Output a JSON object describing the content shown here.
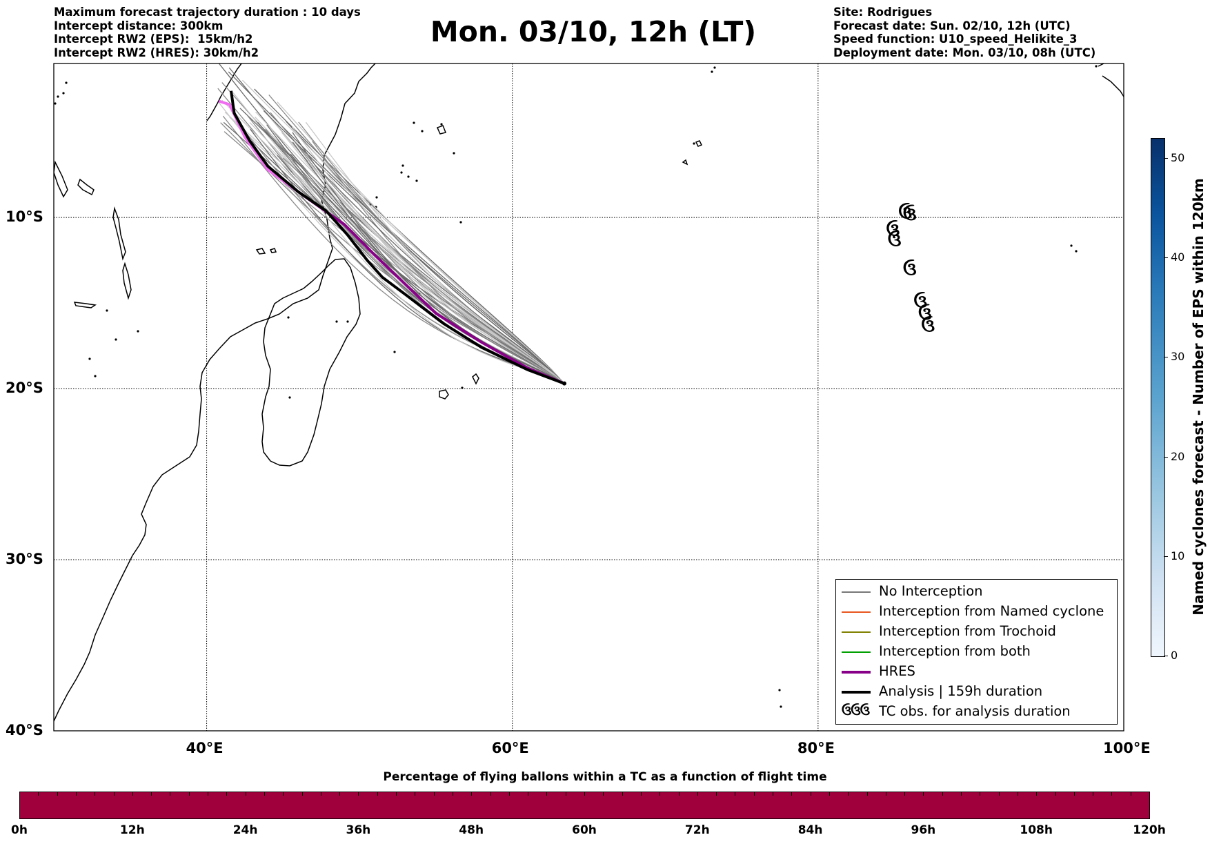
{
  "header": {
    "left_lines": [
      "Maximum forecast trajectory duration : 10 days",
      "Intercept distance: 300km",
      "Intercept RW2 (EPS):  15km/h2",
      "Intercept RW2 (HRES): 30km/h2"
    ],
    "title": "Mon. 03/10, 12h (LT)",
    "right_lines": [
      "Site: Rodrigues",
      "Forecast date: Sun. 02/10, 12h (UTC)",
      "Speed function: U10_speed_Helikite_3",
      "Deployment date: Mon. 03/10, 08h (UTC)"
    ]
  },
  "map": {
    "lon_range": [
      30,
      100
    ],
    "lat_range": [
      -40,
      -1
    ],
    "lon_ticks": [
      {
        "value": 40,
        "label": "40°E"
      },
      {
        "value": 60,
        "label": "60°E"
      },
      {
        "value": 80,
        "label": "80°E"
      },
      {
        "value": 100,
        "label": "100°E"
      }
    ],
    "lat_ticks": [
      {
        "value": -10,
        "label": "10°S"
      },
      {
        "value": -20,
        "label": "20°S"
      },
      {
        "value": -30,
        "label": "30°S"
      },
      {
        "value": -40,
        "label": "40°S"
      }
    ],
    "gridlines": true,
    "launch_site": {
      "lon": 63.4,
      "lat": -19.7
    },
    "hres_track": [
      [
        63.4,
        -19.7
      ],
      [
        61,
        -18.8
      ],
      [
        58,
        -17.3
      ],
      [
        55,
        -15.6
      ],
      [
        53,
        -13.9
      ],
      [
        51,
        -12.2
      ],
      [
        49,
        -10.4
      ],
      [
        46,
        -8.5
      ],
      [
        44,
        -7.2
      ],
      [
        42.5,
        -5.3
      ],
      [
        41.5,
        -3.4
      ],
      [
        40.8,
        -3.2
      ]
    ],
    "analysis_track": [
      [
        63.4,
        -19.7
      ],
      [
        61,
        -18.9
      ],
      [
        58,
        -17.6
      ],
      [
        55.5,
        -16.2
      ],
      [
        53,
        -14.5
      ],
      [
        51.5,
        -13.5
      ],
      [
        50.5,
        -12.5
      ],
      [
        49.2,
        -11
      ],
      [
        47.8,
        -9.6
      ],
      [
        46,
        -8.5
      ],
      [
        44,
        -7
      ],
      [
        42.8,
        -5.5
      ],
      [
        41.8,
        -3.9
      ],
      [
        41.6,
        -2.6
      ]
    ],
    "tc_observations": [
      [
        85.7,
        -9.7
      ],
      [
        86,
        -9.8
      ],
      [
        84.9,
        -10.7
      ],
      [
        85,
        -11.3
      ],
      [
        86,
        -13
      ],
      [
        86.7,
        -14.9
      ],
      [
        87,
        -15.6
      ],
      [
        87.2,
        -16.3
      ]
    ],
    "tc_symbol": "ઉ"
  },
  "legend": {
    "items": [
      {
        "label": "No Interception",
        "color": "#777777",
        "width": 1.3
      },
      {
        "label": "Interception from Named cyclone",
        "color": "#e8561f",
        "width": 1.3
      },
      {
        "label": "Interception from Trochoid",
        "color": "#808000",
        "width": 1.3
      },
      {
        "label": "Interception from both",
        "color": "#00a000",
        "width": 1.3
      },
      {
        "label": "HRES",
        "color": "#880088",
        "width": 4
      },
      {
        "label": "Analysis | 159h duration",
        "color": "#000000",
        "width": 4
      }
    ],
    "tc_item": {
      "symbol": "ઉઉઉ",
      "label": "TC obs. for analysis duration"
    }
  },
  "right_colorbar": {
    "label": "Named cyclones forecast - Number of EPS within 120km",
    "range": [
      0,
      52
    ],
    "ticks": [
      0,
      10,
      20,
      30,
      40,
      50
    ]
  },
  "bottom_colorbar": {
    "title": "Percentage of flying ballons within a TC as a function of flight time",
    "color": "#a0003c",
    "ticks": [
      "0h",
      "12h",
      "24h",
      "36h",
      "48h",
      "60h",
      "72h",
      "84h",
      "96h",
      "108h",
      "120h"
    ]
  }
}
